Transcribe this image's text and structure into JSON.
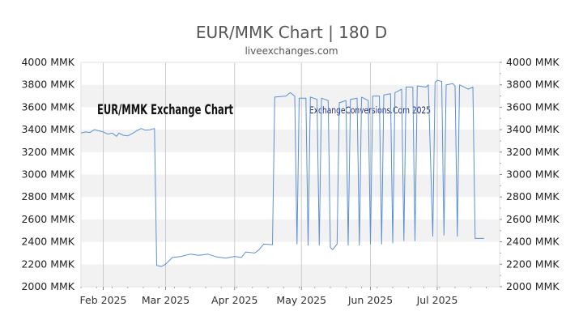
{
  "chart_data": {
    "type": "line",
    "title": "EUR/MMK Chart | 180 D",
    "subtitle": "liveexchanges.com",
    "watermark_left": "EUR/MMK Exchange Chart",
    "watermark_right": "ExchangeConversions.Com 2025",
    "unit": "MMK",
    "ylim": [
      2000,
      4000
    ],
    "yticks": [
      2000,
      2200,
      2400,
      2600,
      2800,
      3000,
      3200,
      3400,
      3600,
      3800,
      4000
    ],
    "ytick_labels": [
      "2000 MMK",
      "2200 MMK",
      "2400 MMK",
      "2600 MMK",
      "2800 MMK",
      "3000 MMK",
      "3200 MMK",
      "3400 MMK",
      "3600 MMK",
      "3800 MMK",
      "4000 MMK"
    ],
    "xlim": [
      "2025-01-22",
      "2025-07-29"
    ],
    "xticks": [
      {
        "date": "2025-02-01",
        "label": "Feb 2025"
      },
      {
        "date": "2025-03-01",
        "label": "Mar 2025"
      },
      {
        "date": "2025-04-01",
        "label": "Apr 2025"
      },
      {
        "date": "2025-05-01",
        "label": "May 2025"
      },
      {
        "date": "2025-06-01",
        "label": "Jun 2025"
      },
      {
        "date": "2025-07-01",
        "label": "Jul 2025"
      }
    ],
    "grid": "horizontal bands",
    "line_color": "#5b8fd6",
    "series": [
      {
        "points": [
          [
            "2025-01-22",
            3370
          ],
          [
            "2025-01-24",
            3380
          ],
          [
            "2025-01-26",
            3375
          ],
          [
            "2025-01-28",
            3400
          ],
          [
            "2025-01-30",
            3390
          ],
          [
            "2025-02-01",
            3380
          ],
          [
            "2025-02-03",
            3360
          ],
          [
            "2025-02-05",
            3370
          ],
          [
            "2025-02-07",
            3340
          ],
          [
            "2025-02-08",
            3370
          ],
          [
            "2025-02-10",
            3350
          ],
          [
            "2025-02-12",
            3345
          ],
          [
            "2025-02-14",
            3365
          ],
          [
            "2025-02-16",
            3390
          ],
          [
            "2025-02-18",
            3410
          ],
          [
            "2025-02-20",
            3395
          ],
          [
            "2025-02-22",
            3400
          ],
          [
            "2025-02-24",
            3410
          ],
          [
            "2025-02-25",
            2190
          ],
          [
            "2025-02-27",
            2180
          ],
          [
            "2025-03-01",
            2200
          ],
          [
            "2025-03-04",
            2260
          ],
          [
            "2025-03-08",
            2270
          ],
          [
            "2025-03-12",
            2290
          ],
          [
            "2025-03-16",
            2280
          ],
          [
            "2025-03-20",
            2290
          ],
          [
            "2025-03-24",
            2265
          ],
          [
            "2025-03-28",
            2255
          ],
          [
            "2025-04-01",
            2270
          ],
          [
            "2025-04-04",
            2260
          ],
          [
            "2025-04-06",
            2310
          ],
          [
            "2025-04-10",
            2300
          ],
          [
            "2025-04-12",
            2330
          ],
          [
            "2025-04-14",
            2380
          ],
          [
            "2025-04-18",
            2375
          ],
          [
            "2025-04-19",
            3690
          ],
          [
            "2025-04-24",
            3700
          ],
          [
            "2025-04-26",
            3730
          ],
          [
            "2025-04-28",
            3700
          ],
          [
            "2025-04-29",
            2380
          ],
          [
            "2025-04-30",
            3680
          ],
          [
            "2025-05-03",
            3680
          ],
          [
            "2025-05-04",
            2370
          ],
          [
            "2025-05-05",
            3690
          ],
          [
            "2025-05-08",
            3670
          ],
          [
            "2025-05-09",
            2370
          ],
          [
            "2025-05-10",
            3680
          ],
          [
            "2025-05-13",
            3660
          ],
          [
            "2025-05-14",
            2350
          ],
          [
            "2025-05-15",
            2330
          ],
          [
            "2025-05-17",
            2380
          ],
          [
            "2025-05-18",
            3640
          ],
          [
            "2025-05-21",
            3660
          ],
          [
            "2025-05-22",
            2370
          ],
          [
            "2025-05-23",
            3670
          ],
          [
            "2025-05-26",
            3680
          ],
          [
            "2025-05-27",
            2370
          ],
          [
            "2025-05-28",
            3690
          ],
          [
            "2025-05-31",
            3660
          ],
          [
            "2025-06-01",
            2380
          ],
          [
            "2025-06-02",
            3700
          ],
          [
            "2025-06-05",
            3700
          ],
          [
            "2025-06-06",
            2380
          ],
          [
            "2025-06-07",
            3710
          ],
          [
            "2025-06-10",
            3720
          ],
          [
            "2025-06-11",
            2390
          ],
          [
            "2025-06-12",
            3730
          ],
          [
            "2025-06-15",
            3760
          ],
          [
            "2025-06-16",
            2410
          ],
          [
            "2025-06-17",
            3780
          ],
          [
            "2025-06-20",
            3780
          ],
          [
            "2025-06-21",
            2410
          ],
          [
            "2025-06-22",
            3790
          ],
          [
            "2025-06-26",
            3780
          ],
          [
            "2025-06-27",
            3800
          ],
          [
            "2025-06-29",
            2450
          ],
          [
            "2025-06-30",
            3820
          ],
          [
            "2025-07-01",
            3840
          ],
          [
            "2025-07-03",
            3830
          ],
          [
            "2025-07-04",
            2460
          ],
          [
            "2025-07-05",
            3800
          ],
          [
            "2025-07-08",
            3810
          ],
          [
            "2025-07-09",
            3790
          ],
          [
            "2025-07-10",
            2450
          ],
          [
            "2025-07-11",
            3800
          ],
          [
            "2025-07-15",
            3760
          ],
          [
            "2025-07-17",
            3780
          ],
          [
            "2025-07-18",
            2430
          ],
          [
            "2025-07-22",
            2430
          ]
        ]
      }
    ]
  }
}
